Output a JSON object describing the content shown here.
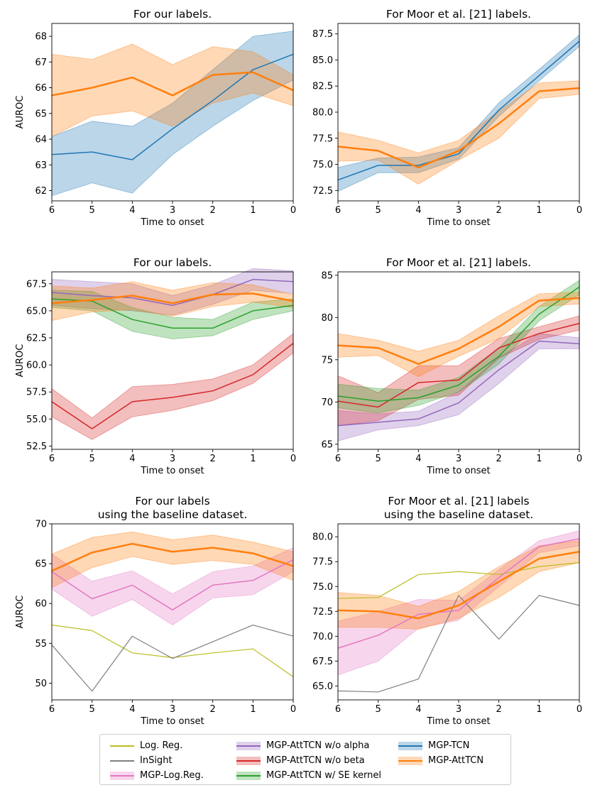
{
  "chart_data": [
    {
      "type": "line",
      "title": "For our labels.",
      "xlabel": "Time to onset",
      "ylabel": "AUROC",
      "x": [
        6,
        5,
        4,
        3,
        2,
        1,
        0
      ],
      "x_ticks": [
        "6",
        "5",
        "4",
        "3",
        "2",
        "1",
        "0"
      ],
      "ylim": [
        61.6,
        68.5
      ],
      "y_ticks": [
        62,
        63,
        64,
        65,
        66,
        67,
        68
      ],
      "y_tick_labels": [
        "62",
        "63",
        "64",
        "65",
        "66",
        "67",
        "68"
      ],
      "series": [
        {
          "name": "MGP-TCN",
          "color": "#1f77b4",
          "values": [
            63.4,
            63.5,
            63.2,
            64.4,
            65.5,
            66.7,
            67.3
          ],
          "lower": [
            61.8,
            62.3,
            61.9,
            63.4,
            64.5,
            65.5,
            66.3
          ],
          "upper": [
            64.1,
            64.7,
            64.5,
            65.4,
            66.7,
            68.0,
            68.2
          ],
          "line_width": 1.5
        },
        {
          "name": "MGP-AttTCN",
          "color": "#ff7f0e",
          "values": [
            65.7,
            66.0,
            66.4,
            65.7,
            66.5,
            66.6,
            65.9
          ],
          "lower": [
            64.1,
            64.9,
            65.1,
            64.5,
            65.4,
            65.8,
            65.3
          ],
          "upper": [
            67.3,
            67.1,
            67.7,
            66.9,
            67.6,
            67.4,
            66.5
          ],
          "line_width": 2.5
        }
      ]
    },
    {
      "type": "line",
      "title": "For Moor et al. [21] labels.",
      "xlabel": "Time to onset",
      "ylabel": "",
      "x": [
        6,
        5,
        4,
        3,
        2,
        1,
        0
      ],
      "x_ticks": [
        "6",
        "5",
        "4",
        "3",
        "2",
        "1",
        "0"
      ],
      "ylim": [
        71.5,
        88.5
      ],
      "y_ticks": [
        72.5,
        75.0,
        77.5,
        80.0,
        82.5,
        85.0,
        87.5
      ],
      "y_tick_labels": [
        "72.5",
        "75.0",
        "77.5",
        "80.0",
        "82.5",
        "85.0",
        "87.5"
      ],
      "series": [
        {
          "name": "MGP-TCN",
          "color": "#1f77b4",
          "values": [
            73.5,
            74.9,
            74.9,
            76.0,
            80.2,
            83.5,
            86.8
          ],
          "lower": [
            72.4,
            74.2,
            74.2,
            75.5,
            79.6,
            83.0,
            86.3
          ],
          "upper": [
            74.7,
            75.6,
            75.7,
            76.6,
            80.9,
            84.1,
            87.4
          ],
          "line_width": 1.5
        },
        {
          "name": "MGP-AttTCN",
          "color": "#ff7f0e",
          "values": [
            76.7,
            76.3,
            74.7,
            76.3,
            78.9,
            82.0,
            82.3
          ],
          "lower": [
            75.3,
            75.4,
            73.1,
            75.4,
            77.5,
            81.3,
            81.7
          ],
          "upper": [
            78.1,
            77.3,
            76.1,
            77.3,
            80.1,
            82.8,
            83.0
          ],
          "line_width": 2.5
        }
      ]
    },
    {
      "type": "line",
      "title": "For our labels.",
      "xlabel": "Time to onset",
      "ylabel": "AUROC",
      "x": [
        6,
        5,
        4,
        3,
        2,
        1,
        0
      ],
      "x_ticks": [
        "6",
        "5",
        "4",
        "3",
        "2",
        "1",
        "0"
      ],
      "ylim": [
        52.2,
        68.6
      ],
      "y_ticks": [
        52.5,
        55.0,
        57.5,
        60.0,
        62.5,
        65.0,
        67.5
      ],
      "y_tick_labels": [
        "52.5",
        "55.0",
        "57.5",
        "60.0",
        "62.5",
        "65.0",
        "67.5"
      ],
      "series": [
        {
          "name": "MGP-AttTCN w/o alpha",
          "color": "#9467bd",
          "values": [
            66.7,
            66.4,
            66.2,
            65.5,
            66.5,
            67.9,
            67.7
          ],
          "lower": [
            65.5,
            65.2,
            65.0,
            64.6,
            65.6,
            66.9,
            66.6
          ],
          "upper": [
            67.9,
            67.7,
            67.5,
            66.4,
            67.4,
            68.9,
            68.7
          ],
          "line_width": 1.5
        },
        {
          "name": "MGP-AttTCN w/o beta",
          "color": "#d62728",
          "values": [
            56.6,
            54.1,
            56.6,
            57.0,
            57.6,
            59.1,
            62.0
          ],
          "lower": [
            55.2,
            53.1,
            55.2,
            55.8,
            56.7,
            58.3,
            61.1
          ],
          "upper": [
            57.8,
            55.1,
            58.0,
            58.2,
            58.7,
            60.0,
            62.9
          ],
          "line_width": 1.5
        },
        {
          "name": "MGP-AttTCN w/ SE kernel",
          "color": "#2ca02c",
          "values": [
            66.1,
            65.9,
            64.2,
            63.4,
            63.4,
            65.0,
            65.5
          ],
          "lower": [
            65.3,
            65.0,
            63.1,
            62.4,
            62.7,
            64.2,
            65.0
          ],
          "upper": [
            66.9,
            66.8,
            65.3,
            64.4,
            64.2,
            65.8,
            66.1
          ],
          "line_width": 1.5
        },
        {
          "name": "MGP-AttTCN",
          "color": "#ff7f0e",
          "values": [
            65.7,
            66.0,
            66.4,
            65.7,
            66.5,
            66.6,
            65.9
          ],
          "lower": [
            64.1,
            64.9,
            65.1,
            64.5,
            65.4,
            65.8,
            65.3
          ],
          "upper": [
            67.3,
            67.1,
            67.7,
            66.9,
            67.6,
            67.4,
            66.5
          ],
          "line_width": 2.5
        }
      ]
    },
    {
      "type": "line",
      "title": "For Moor et al. [21] labels.",
      "xlabel": "Time to onset",
      "ylabel": "",
      "x": [
        6,
        5,
        4,
        3,
        2,
        1,
        0
      ],
      "x_ticks": [
        "6",
        "5",
        "4",
        "3",
        "2",
        "1",
        "0"
      ],
      "ylim": [
        64.4,
        85.4
      ],
      "y_ticks": [
        65,
        70,
        75,
        80,
        85
      ],
      "y_tick_labels": [
        "65",
        "70",
        "75",
        "80",
        "85"
      ],
      "series": [
        {
          "name": "MGP-AttTCN w/o alpha",
          "color": "#9467bd",
          "values": [
            67.2,
            67.6,
            68.0,
            69.9,
            73.8,
            77.2,
            76.9
          ],
          "lower": [
            65.4,
            66.7,
            67.2,
            68.5,
            72.2,
            76.3,
            76.3
          ],
          "upper": [
            69.0,
            68.6,
            68.9,
            71.2,
            75.3,
            78.1,
            77.6
          ],
          "line_width": 1.5
        },
        {
          "name": "MGP-AttTCN w/o beta",
          "color": "#d62728",
          "values": [
            70.1,
            69.4,
            72.3,
            72.6,
            76.4,
            78.1,
            79.3
          ],
          "lower": [
            67.2,
            67.8,
            70.3,
            70.8,
            75.2,
            77.4,
            78.5
          ],
          "upper": [
            73.1,
            71.1,
            74.3,
            74.3,
            77.5,
            78.9,
            80.2
          ],
          "line_width": 1.5
        },
        {
          "name": "MGP-AttTCN w/ SE kernel",
          "color": "#2ca02c",
          "values": [
            70.7,
            70.1,
            70.5,
            72.0,
            75.4,
            80.4,
            83.6
          ],
          "lower": [
            69.3,
            68.7,
            69.6,
            71.2,
            74.5,
            79.6,
            82.7
          ],
          "upper": [
            72.1,
            71.6,
            71.4,
            72.9,
            76.4,
            81.3,
            84.4
          ],
          "line_width": 1.5
        },
        {
          "name": "MGP-AttTCN",
          "color": "#ff7f0e",
          "values": [
            76.7,
            76.4,
            74.5,
            76.3,
            78.9,
            82.0,
            82.3
          ],
          "lower": [
            75.3,
            75.5,
            73.0,
            75.4,
            77.5,
            81.3,
            81.6
          ],
          "upper": [
            78.1,
            77.3,
            76.0,
            77.3,
            80.2,
            82.8,
            83.0
          ],
          "line_width": 2.5
        }
      ]
    },
    {
      "type": "line",
      "title": "For our labels\nusing the baseline dataset.",
      "xlabel": "Time to onset",
      "ylabel": "AUROC",
      "x": [
        6,
        5,
        4,
        3,
        2,
        1,
        0
      ],
      "x_ticks": [
        "6",
        "5",
        "4",
        "3",
        "2",
        "1",
        "0"
      ],
      "ylim": [
        47.9,
        70.0
      ],
      "y_ticks": [
        50,
        55,
        60,
        65,
        70
      ],
      "y_tick_labels": [
        "50",
        "55",
        "60",
        "65",
        "70"
      ],
      "series": [
        {
          "name": "Log. Reg.",
          "color": "#bcbd22",
          "values": [
            57.3,
            56.6,
            53.8,
            53.2,
            53.8,
            54.3,
            50.8
          ],
          "line_width": 1.2
        },
        {
          "name": "InSight",
          "color": "#7f7f7f",
          "values": [
            54.8,
            49.0,
            55.9,
            53.1,
            55.2,
            57.3,
            55.9
          ],
          "line_width": 1.2
        },
        {
          "name": "MGP-Log.Reg.",
          "color": "#e377c2",
          "values": [
            64.0,
            60.6,
            62.3,
            59.2,
            62.3,
            62.9,
            65.5
          ],
          "lower": [
            61.8,
            58.4,
            60.5,
            57.3,
            60.7,
            61.1,
            64.0
          ],
          "upper": [
            66.2,
            62.8,
            64.1,
            61.2,
            64.0,
            64.7,
            67.0
          ],
          "line_width": 1.5
        },
        {
          "name": "MGP-AttTCN",
          "color": "#ff7f0e",
          "values": [
            64.1,
            66.4,
            67.5,
            66.5,
            67.0,
            66.3,
            64.7
          ],
          "lower": [
            62.0,
            64.5,
            65.9,
            64.9,
            65.4,
            64.9,
            62.9
          ],
          "upper": [
            66.2,
            68.3,
            69.0,
            68.0,
            68.6,
            67.7,
            66.5
          ],
          "line_width": 2.5
        }
      ]
    },
    {
      "type": "line",
      "title": "For Moor et al. [21] labels\nusing the baseline dataset.",
      "xlabel": "Time to onset",
      "ylabel": "",
      "x": [
        6,
        5,
        4,
        3,
        2,
        1,
        0
      ],
      "x_ticks": [
        "6",
        "5",
        "4",
        "3",
        "2",
        "1",
        "0"
      ],
      "ylim": [
        63.6,
        81.3
      ],
      "y_ticks": [
        65.0,
        67.5,
        70.0,
        72.5,
        75.0,
        77.5,
        80.0
      ],
      "y_tick_labels": [
        "65.0",
        "67.5",
        "70.0",
        "72.5",
        "75.0",
        "77.5",
        "80.0"
      ],
      "series": [
        {
          "name": "Log. Reg.",
          "color": "#bcbd22",
          "values": [
            73.8,
            73.9,
            76.2,
            76.5,
            76.2,
            77.0,
            77.4
          ],
          "line_width": 1.2
        },
        {
          "name": "InSight",
          "color": "#7f7f7f",
          "values": [
            64.5,
            64.4,
            65.7,
            74.1,
            69.7,
            74.1,
            73.1
          ],
          "line_width": 1.2
        },
        {
          "name": "MGP-Log.Reg.",
          "color": "#e377c2",
          "values": [
            68.8,
            70.1,
            72.2,
            72.6,
            75.9,
            79.0,
            79.8
          ],
          "lower": [
            66.1,
            67.5,
            70.8,
            71.6,
            75.0,
            78.4,
            79.1
          ],
          "upper": [
            71.5,
            72.5,
            73.7,
            73.6,
            76.7,
            79.6,
            80.6
          ],
          "line_width": 1.5
        },
        {
          "name": "MGP-AttTCN",
          "color": "#ff7f0e",
          "values": [
            72.6,
            72.5,
            71.8,
            73.1,
            75.5,
            77.8,
            78.5
          ],
          "lower": [
            70.9,
            70.9,
            70.7,
            71.8,
            73.9,
            76.5,
            77.4
          ],
          "upper": [
            74.4,
            74.1,
            73.0,
            74.5,
            77.0,
            79.1,
            79.6
          ],
          "line_width": 2.5
        }
      ]
    }
  ],
  "legend": {
    "items": [
      {
        "label": "Log. Reg.",
        "color": "#bcbd22",
        "band": false
      },
      {
        "label": "InSight",
        "color": "#7f7f7f",
        "band": false
      },
      {
        "label": "MGP-Log.Reg.",
        "color": "#e377c2",
        "band": true
      },
      {
        "label": "MGP-AttTCN w/o alpha",
        "color": "#9467bd",
        "band": true
      },
      {
        "label": "MGP-AttTCN w/o beta",
        "color": "#d62728",
        "band": true
      },
      {
        "label": "MGP-AttTCN w/ SE kernel",
        "color": "#2ca02c",
        "band": true
      },
      {
        "label": "MGP-TCN",
        "color": "#1f77b4",
        "band": true
      },
      {
        "label": "MGP-AttTCN",
        "color": "#ff7f0e",
        "band": true
      }
    ]
  }
}
